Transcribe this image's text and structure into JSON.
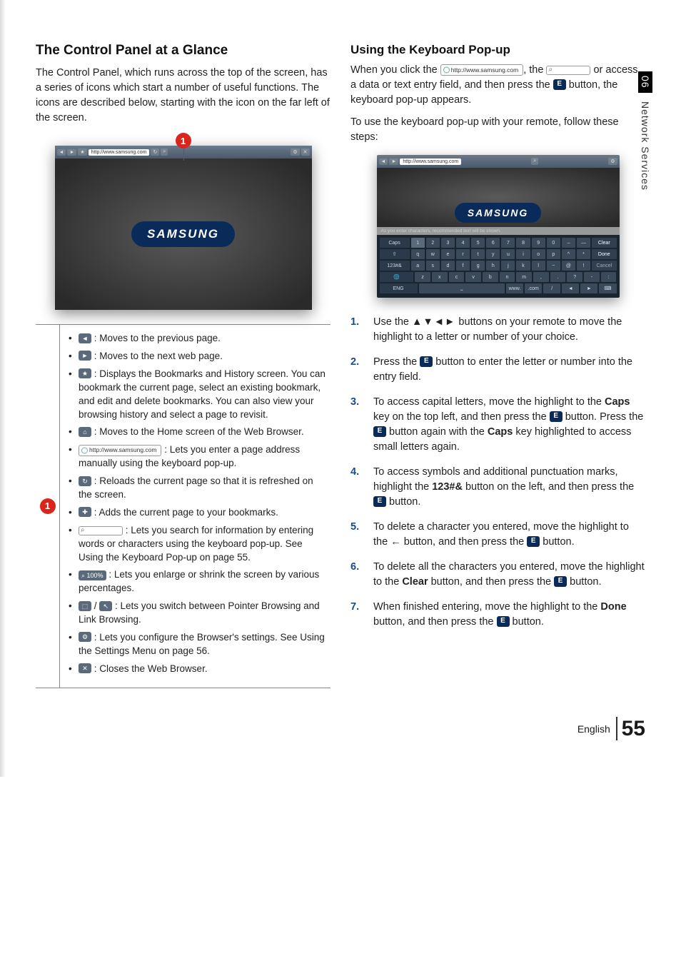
{
  "side": {
    "chapter_num": "06",
    "chapter_title": "Network Services"
  },
  "left": {
    "heading": "The Control Panel at a Glance",
    "intro": "The Control Panel, which runs across the top of the screen, has a series of icons which start a number of useful functions. The icons are described below, starting with the icon on the far left of the screen.",
    "callout_number": "1",
    "screenshot": {
      "url_bar": "http://www.samsung.com",
      "logo_text": "SAMSUNG"
    },
    "icon_items": [
      {
        "icon": "◄",
        "icon_type": "ui-icon",
        "text": " : Moves to the previous page."
      },
      {
        "icon": "►",
        "icon_type": "ui-icon",
        "text": " : Moves to the next web page."
      },
      {
        "icon": "★",
        "icon_type": "ui-icon",
        "text": " : Displays the Bookmarks and History screen. You can bookmark the current page, select an existing bookmark, and edit and delete bookmarks. You can also view your browsing history and select a page to revisit."
      },
      {
        "icon": "⌂",
        "icon_type": "ui-icon",
        "text": " : Moves to the Home screen of the Web Browser."
      },
      {
        "icon": "http://www.samsung.com",
        "icon_type": "ui-url",
        "text": " : Lets you enter a page address manually using the keyboard pop-up."
      },
      {
        "icon": "↻",
        "icon_type": "ui-icon",
        "text": " : Reloads the current page so that it is refreshed on the screen."
      },
      {
        "icon": "✚",
        "icon_type": "ui-icon",
        "text": " : Adds the current page to your bookmarks."
      },
      {
        "icon": "",
        "icon_type": "ui-search",
        "text": " : Lets you search for information by entering words or characters using the keyboard pop-up. See Using the Keyboard Pop-up on page 55."
      },
      {
        "icon": "⌕ 100%",
        "icon_type": "ui-zoom",
        "text": " : Lets you enlarge or shrink the screen by various percentages."
      },
      {
        "icon": "⬚",
        "icon2": "↖",
        "icon_type": "ui-icon-pair",
        "text": " : Lets you switch between Pointer Browsing and Link Browsing."
      },
      {
        "icon": "⚙",
        "icon_type": "ui-icon",
        "text": " : Lets you configure the Browser's settings. See Using the Settings Menu on page 56."
      },
      {
        "icon": "✕",
        "icon_type": "ui-icon",
        "text": " : Closes the Web Browser."
      }
    ]
  },
  "right": {
    "heading": "Using the Keyboard Pop-up",
    "intro_parts": {
      "p1a": "When you click the ",
      "url_chip": "http://www.samsung.com",
      "p1b": ", the ",
      "p1c": " or access a data or text entry field, and then press the ",
      "p1d": " button, the keyboard pop-up appears.",
      "p2": "To use the keyboard pop-up with your remote, follow these steps:"
    },
    "kb_screenshot": {
      "url_bar": "http://www.samsung.com",
      "logo_text": "SAMSUNG",
      "hint": "As you enter characters, recommended text will be shown.",
      "rows": [
        [
          "Caps",
          "1",
          "2",
          "3",
          "4",
          "5",
          "6",
          "7",
          "8",
          "9",
          "0",
          "–",
          "—",
          "Clear"
        ],
        [
          "⇧",
          "q",
          "w",
          "e",
          "r",
          "t",
          "y",
          "u",
          "i",
          "o",
          "p",
          "^",
          "*",
          "Done"
        ],
        [
          "123#&",
          "a",
          "s",
          "d",
          "f",
          "g",
          "h",
          "j",
          "k",
          "l",
          "~",
          "@",
          "!",
          "Cancel"
        ],
        [
          "🌐",
          "z",
          "x",
          "c",
          "v",
          "b",
          "n",
          "m",
          ",",
          ".",
          "?",
          "-",
          ":",
          ""
        ],
        [
          "ENG",
          "",
          "⎵",
          "",
          "",
          "",
          "",
          "www.",
          ".com",
          "/",
          "◄",
          "►",
          "",
          "⌨"
        ]
      ]
    },
    "steps": [
      {
        "n": "1.",
        "text_a": "Use the ",
        "arrows": "▲▼◄►",
        "text_b": " buttons on your remote to move the highlight to a letter or number of your choice."
      },
      {
        "n": "2.",
        "text_a": "Press the ",
        "enter": true,
        "text_b": " button to enter the letter or number into the entry field."
      },
      {
        "n": "3.",
        "text_a": "To access capital letters, move the highlight to the ",
        "b1": "Caps",
        "text_b": " key on the top left, and then press the ",
        "enter1": true,
        "text_c": " button. Press the ",
        "enter2": true,
        "text_d": " button again with the ",
        "b2": "Caps",
        "text_e": " key highlighted to access small letters again."
      },
      {
        "n": "4.",
        "text_a": "To access symbols and additional punctuation marks, highlight the ",
        "b1": "123#&",
        "text_b": " button on the left, and then press the ",
        "enter1": true,
        "text_c": " button."
      },
      {
        "n": "5.",
        "text_a": "To delete a character you entered, move the highlight to the ",
        "arrow_back": "←",
        "text_b": " button, and then press the ",
        "enter1": true,
        "text_c": " button."
      },
      {
        "n": "6.",
        "text_a": "To delete all the characters you entered, move the highlight to the ",
        "b1": "Clear",
        "text_b": " button, and then press the ",
        "enter1": true,
        "text_c": " button."
      },
      {
        "n": "7.",
        "text_a": "When finished entering, move the highlight to the ",
        "b1": "Done",
        "text_b": " button, and then press the ",
        "enter1": true,
        "text_c": " button."
      }
    ]
  },
  "footer": {
    "lang": "English",
    "page": "55"
  }
}
